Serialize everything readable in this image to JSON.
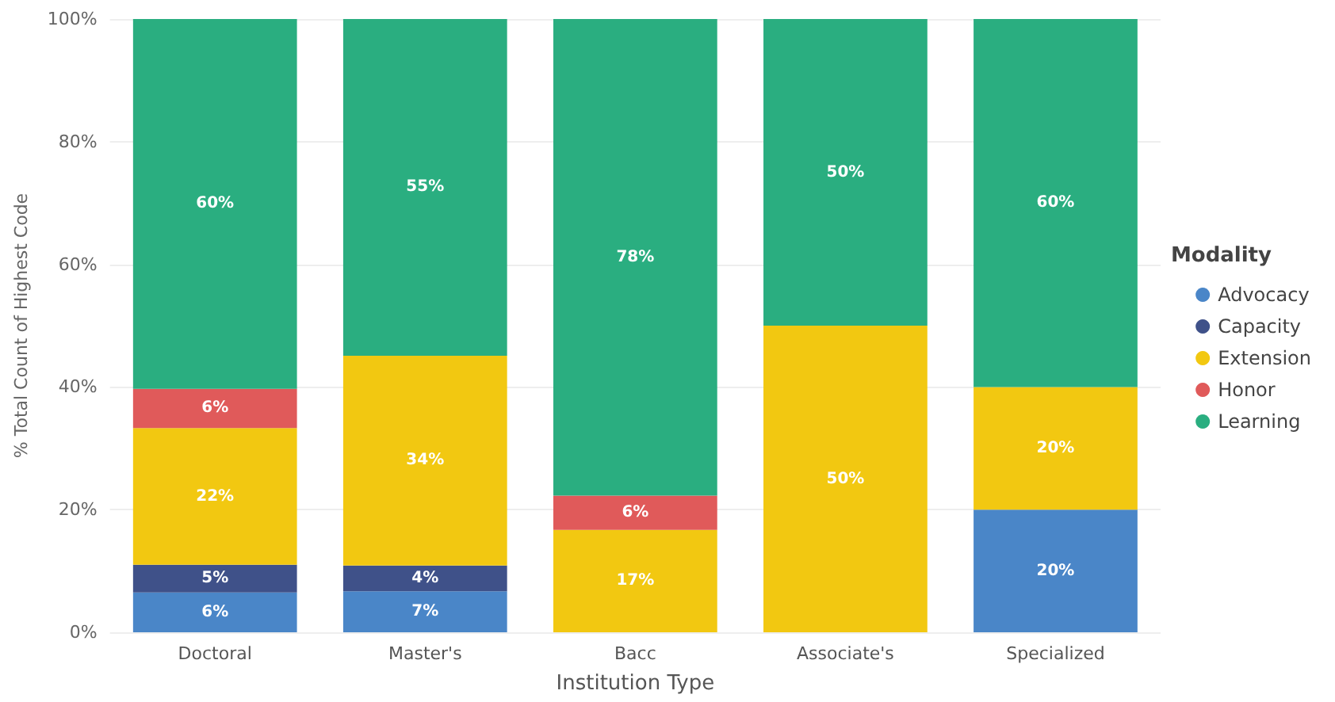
{
  "chart_data": {
    "type": "bar",
    "stacked": true,
    "xlabel": "Institution Type",
    "ylabel": "% Total Count of Highest Code",
    "legend_title": "Modality",
    "legend": "right",
    "grid": "y",
    "categories": [
      "Doctoral",
      "Master's",
      "Bacc",
      "Associate's",
      "Specialized"
    ],
    "ylim": [
      0,
      100
    ],
    "yticks": [
      {
        "value": 0,
        "label": "0%"
      },
      {
        "value": 20,
        "label": "20%"
      },
      {
        "value": 40,
        "label": "40%"
      },
      {
        "value": 60,
        "label": "60%"
      },
      {
        "value": 80,
        "label": "80%"
      },
      {
        "value": 100,
        "label": "100%"
      }
    ],
    "series": [
      {
        "name": "Advocacy",
        "color": "#4a86c8",
        "values": [
          6.5,
          6.7,
          null,
          null,
          20
        ],
        "value_labels": [
          "6%",
          "7%",
          null,
          null,
          "20%"
        ]
      },
      {
        "name": "Capacity",
        "color": "#3f5189",
        "values": [
          4.5,
          4.2,
          null,
          null,
          null
        ],
        "value_labels": [
          "5%",
          "4%",
          null,
          null,
          null
        ]
      },
      {
        "name": "Extension",
        "color": "#f2c811",
        "values": [
          22.3,
          34.2,
          16.7,
          50,
          20
        ],
        "value_labels": [
          "22%",
          "34%",
          "17%",
          "50%",
          "20%"
        ]
      },
      {
        "name": "Honor",
        "color": "#e05a5a",
        "values": [
          6.4,
          null,
          5.6,
          null,
          null
        ],
        "value_labels": [
          "6%",
          null,
          "6%",
          null,
          null
        ]
      },
      {
        "name": "Learning",
        "color": "#2aae80",
        "values": [
          60.3,
          54.9,
          77.7,
          50,
          60
        ],
        "value_labels": [
          "60%",
          "55%",
          "78%",
          "50%",
          "60%"
        ]
      }
    ]
  }
}
